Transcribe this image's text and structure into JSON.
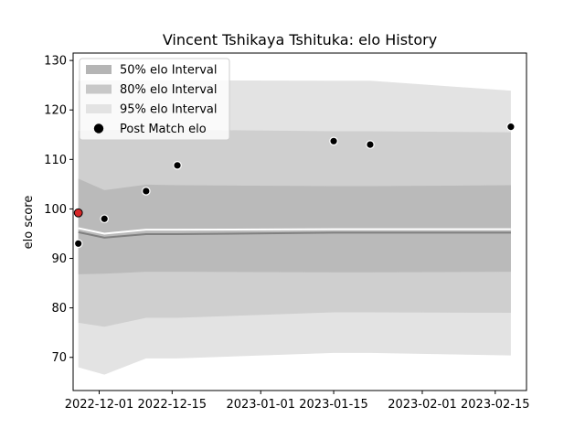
{
  "chart_data": {
    "type": "area",
    "title": "Vincent Tshikaya Tshituka: elo History",
    "xlabel": "",
    "ylabel": "elo score",
    "xlim": [
      "2022-11-26",
      "2023-02-21"
    ],
    "ylim": [
      63.3,
      131.5
    ],
    "x_ticks": [
      {
        "date": "2022-12-01",
        "label": "2022-12-01"
      },
      {
        "date": "2022-12-15",
        "label": "2022-12-15"
      },
      {
        "date": "2023-01-01",
        "label": "2023-01-01"
      },
      {
        "date": "2023-01-15",
        "label": "2023-01-15"
      },
      {
        "date": "2023-02-01",
        "label": "2023-02-01"
      },
      {
        "date": "2023-02-15",
        "label": "2023-02-15"
      }
    ],
    "y_ticks": [
      70,
      80,
      90,
      100,
      110,
      120,
      130
    ],
    "legend_position": "top-left",
    "grid": false,
    "x": [
      "2022-11-27",
      "2022-12-02",
      "2022-12-10",
      "2022-12-16",
      "2023-01-15",
      "2023-01-22",
      "2023-02-18"
    ],
    "mean": [
      95.3,
      94.2,
      94.9,
      94.9,
      95.2,
      95.2,
      95.2
    ],
    "median": [
      96.1,
      95.0,
      95.8,
      95.8,
      95.9,
      95.9,
      95.9
    ],
    "bands": [
      {
        "name": "95% elo Interval",
        "color": "#e3e3e3",
        "lower": [
          68.0,
          66.5,
          69.8,
          69.8,
          70.9,
          70.9,
          70.4
        ],
        "upper": [
          125.9,
          126.0,
          126.0,
          126.0,
          125.9,
          125.9,
          123.9
        ]
      },
      {
        "name": "80% elo Interval",
        "color": "#cfcfcf",
        "lower": [
          77.0,
          76.2,
          78.0,
          78.0,
          79.1,
          79.1,
          79.0
        ],
        "upper": [
          115.8,
          116.0,
          116.0,
          116.0,
          115.7,
          115.7,
          115.5
        ]
      },
      {
        "name": "50% elo Interval",
        "color": "#bababa",
        "lower": [
          86.8,
          86.9,
          87.3,
          87.3,
          87.2,
          87.2,
          87.3
        ],
        "upper": [
          106.1,
          103.8,
          104.9,
          104.8,
          104.6,
          104.6,
          104.8
        ]
      }
    ],
    "post_match": {
      "name": "Post Match elo",
      "points": [
        {
          "x": "2022-11-27",
          "y": 93.0
        },
        {
          "x": "2022-12-02",
          "y": 98.0
        },
        {
          "x": "2022-12-10",
          "y": 103.6
        },
        {
          "x": "2022-12-16",
          "y": 108.8
        },
        {
          "x": "2023-01-15",
          "y": 113.7
        },
        {
          "x": "2023-01-22",
          "y": 113.0
        },
        {
          "x": "2023-02-18",
          "y": 116.6
        }
      ],
      "highlight": {
        "x": "2022-11-27",
        "y": 99.2,
        "color": "#d62728"
      }
    },
    "legend": [
      {
        "label": "50% elo Interval",
        "color": "#b5b5b5",
        "kind": "patch"
      },
      {
        "label": "80% elo Interval",
        "color": "#c8c8c8",
        "kind": "patch"
      },
      {
        "label": "95% elo Interval",
        "color": "#e3e3e3",
        "kind": "patch"
      },
      {
        "label": "Post Match elo",
        "color": "#000000",
        "kind": "marker"
      }
    ]
  }
}
